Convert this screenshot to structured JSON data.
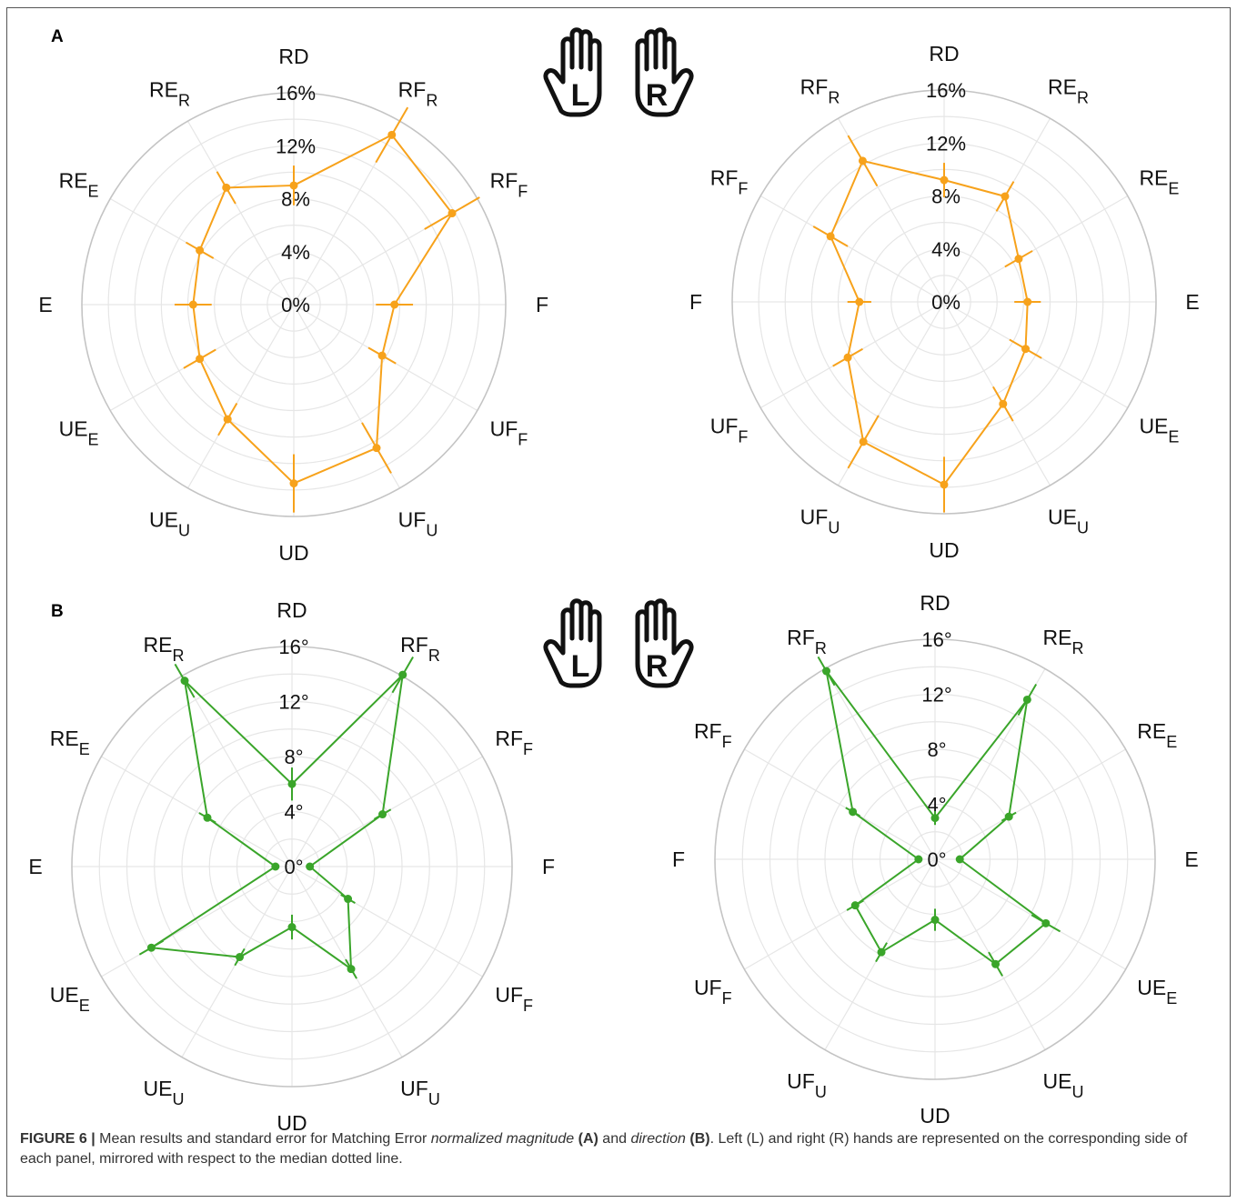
{
  "panels": [
    {
      "letter": "A",
      "hand_left": "L",
      "hand_right": "R",
      "chart_data": [
        {
          "type": "radar",
          "title": "",
          "unit": "%",
          "ticks": [
            "0%",
            "4%",
            "8%",
            "12%",
            "16%"
          ],
          "rlim": [
            0,
            16
          ],
          "grid": true,
          "color": "#f7a21b",
          "categories": [
            {
              "main": "RD",
              "sub": ""
            },
            {
              "main": "RF",
              "sub": "R"
            },
            {
              "main": "RF",
              "sub": "F"
            },
            {
              "main": "F",
              "sub": ""
            },
            {
              "main": "UF",
              "sub": "F"
            },
            {
              "main": "UF",
              "sub": "U"
            },
            {
              "main": "UD",
              "sub": ""
            },
            {
              "main": "UE",
              "sub": "U"
            },
            {
              "main": "UE",
              "sub": "E"
            },
            {
              "main": "E",
              "sub": ""
            },
            {
              "main": "RE",
              "sub": "E"
            },
            {
              "main": "RE",
              "sub": "R"
            }
          ],
          "values": [
            9.0,
            14.8,
            13.8,
            7.6,
            7.7,
            12.5,
            13.5,
            10.0,
            8.2,
            7.6,
            8.2,
            10.2
          ],
          "errors": [
            1.5,
            2.4,
            2.4,
            1.4,
            1.2,
            2.2,
            2.2,
            1.4,
            1.4,
            1.4,
            1.2,
            1.4
          ]
        },
        {
          "type": "radar",
          "title": "",
          "unit": "%",
          "ticks": [
            "0%",
            "4%",
            "8%",
            "12%",
            "16%"
          ],
          "rlim": [
            0,
            16
          ],
          "grid": true,
          "color": "#f7a21b",
          "categories": [
            {
              "main": "RD",
              "sub": ""
            },
            {
              "main": "RE",
              "sub": "R"
            },
            {
              "main": "RE",
              "sub": "E"
            },
            {
              "main": "E",
              "sub": ""
            },
            {
              "main": "UE",
              "sub": "E"
            },
            {
              "main": "UE",
              "sub": "U"
            },
            {
              "main": "UD",
              "sub": ""
            },
            {
              "main": "UF",
              "sub": "U"
            },
            {
              "main": "UF",
              "sub": "F"
            },
            {
              "main": "F",
              "sub": ""
            },
            {
              "main": "RF",
              "sub": "F"
            },
            {
              "main": "RF",
              "sub": "R"
            }
          ],
          "values": [
            9.2,
            9.2,
            6.5,
            6.3,
            7.1,
            8.9,
            13.8,
            12.2,
            8.4,
            6.4,
            9.9,
            12.3
          ],
          "errors": [
            1.3,
            1.3,
            1.2,
            1.0,
            1.4,
            1.5,
            2.1,
            2.3,
            1.3,
            0.9,
            1.5,
            2.2
          ]
        }
      ]
    },
    {
      "letter": "B",
      "hand_left": "L",
      "hand_right": "R",
      "chart_data": [
        {
          "type": "radar",
          "title": "",
          "unit": "°",
          "ticks": [
            "0°",
            "4°",
            "8°",
            "12°",
            "16°"
          ],
          "rlim": [
            0,
            16
          ],
          "grid": true,
          "color": "#3aa52a",
          "categories": [
            {
              "main": "RD",
              "sub": ""
            },
            {
              "main": "RF",
              "sub": "R"
            },
            {
              "main": "RF",
              "sub": "F"
            },
            {
              "main": "F",
              "sub": ""
            },
            {
              "main": "UF",
              "sub": "F"
            },
            {
              "main": "UF",
              "sub": "U"
            },
            {
              "main": "UD",
              "sub": ""
            },
            {
              "main": "UE",
              "sub": "U"
            },
            {
              "main": "UE",
              "sub": "E"
            },
            {
              "main": "E",
              "sub": ""
            },
            {
              "main": "RE",
              "sub": "E"
            },
            {
              "main": "RE",
              "sub": "R"
            }
          ],
          "values": [
            6.0,
            16.1,
            7.6,
            1.3,
            4.7,
            8.6,
            4.4,
            7.6,
            11.8,
            1.2,
            7.1,
            15.6
          ],
          "errors": [
            1.2,
            1.5,
            0.7,
            0.2,
            0.6,
            0.8,
            0.9,
            0.7,
            1.0,
            0.2,
            0.7,
            1.4
          ]
        },
        {
          "type": "radar",
          "title": "",
          "unit": "°",
          "ticks": [
            "0°",
            "4°",
            "8°",
            "12°",
            "16°"
          ],
          "rlim": [
            0,
            16
          ],
          "grid": true,
          "color": "#3aa52a",
          "categories": [
            {
              "main": "RD",
              "sub": ""
            },
            {
              "main": "RE",
              "sub": "R"
            },
            {
              "main": "RE",
              "sub": "E"
            },
            {
              "main": "E",
              "sub": ""
            },
            {
              "main": "UE",
              "sub": "E"
            },
            {
              "main": "UE",
              "sub": "U"
            },
            {
              "main": "UD",
              "sub": ""
            },
            {
              "main": "UF",
              "sub": "U"
            },
            {
              "main": "UF",
              "sub": "F"
            },
            {
              "main": "F",
              "sub": ""
            },
            {
              "main": "RF",
              "sub": "F"
            },
            {
              "main": "RF",
              "sub": "R"
            }
          ],
          "values": [
            3.0,
            13.4,
            6.2,
            1.8,
            9.3,
            8.8,
            4.4,
            7.8,
            6.7,
            1.2,
            6.9,
            15.8
          ],
          "errors": [
            0.5,
            1.3,
            0.6,
            0.2,
            1.2,
            1.0,
            0.8,
            0.8,
            0.7,
            0.2,
            0.6,
            1.2
          ]
        }
      ]
    }
  ],
  "caption": {
    "figure_label": "FIGURE 6 |",
    "t1": " Mean results and standard error for Matching Error ",
    "i1": "normalized magnitude",
    "b1": " (A)",
    "t2": " and ",
    "i2": "direction",
    "b2": " (B)",
    "t3": ". Left (L) and right (R) hands are represented on the corresponding side of each panel, mirrored with respect to the median dotted line."
  },
  "icons": [
    "left-hand-icon",
    "right-hand-icon"
  ]
}
